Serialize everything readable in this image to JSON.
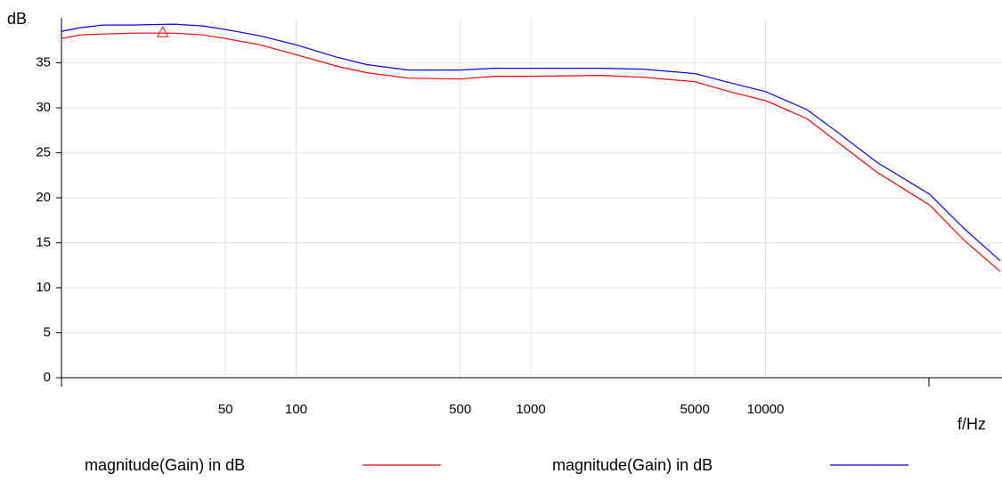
{
  "chart_data": {
    "type": "line",
    "ylabel": "dB",
    "xlabel": "f/Hz",
    "x": [
      10,
      12,
      15,
      20,
      30,
      40,
      50,
      70,
      100,
      150,
      200,
      300,
      500,
      700,
      1000,
      2000,
      3000,
      5000,
      7000,
      10000,
      15000,
      20000,
      30000,
      50000,
      70000,
      100000
    ],
    "series": [
      {
        "name": "magnitude(Gain) in dB",
        "color": "#ff0000",
        "values": [
          37.7,
          38.1,
          38.2,
          38.3,
          38.3,
          38.1,
          37.7,
          37.0,
          35.9,
          34.6,
          33.9,
          33.3,
          33.2,
          33.5,
          33.5,
          33.6,
          33.4,
          32.9,
          31.8,
          30.8,
          28.8,
          26.3,
          22.8,
          19.2,
          15.3,
          11.8
        ]
      },
      {
        "name": "magnitude(Gain) in dB",
        "color": "#0000ff",
        "values": [
          38.5,
          38.9,
          39.2,
          39.2,
          39.3,
          39.1,
          38.7,
          38.0,
          37.0,
          35.6,
          34.8,
          34.2,
          34.2,
          34.4,
          34.4,
          34.4,
          34.3,
          33.8,
          32.8,
          31.8,
          29.8,
          27.4,
          23.9,
          20.4,
          16.6,
          13.0
        ]
      }
    ],
    "marker": {
      "x": 27,
      "y": 38.3,
      "series": 0
    },
    "xscale": "log",
    "xlim": [
      10,
      100000
    ],
    "xticks": [
      50,
      100,
      500,
      1000,
      5000,
      10000
    ],
    "ylim": [
      0,
      40
    ],
    "yticks": [
      0,
      5,
      10,
      15,
      20,
      25,
      30,
      35
    ],
    "grid": true,
    "legend": "bottom"
  }
}
